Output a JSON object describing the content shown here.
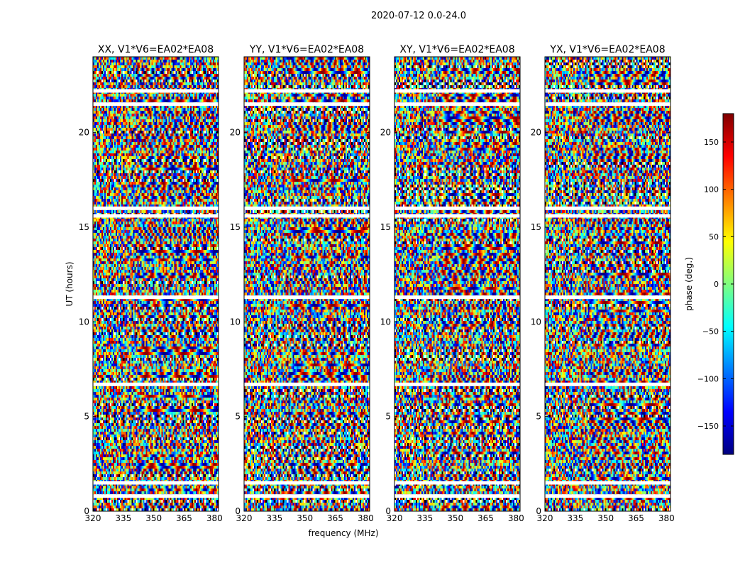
{
  "figure": {
    "suptitle": "2020-07-12 0.0-24.0"
  },
  "chart_data": {
    "type": "heatmap",
    "xlabel": "frequency (MHz)",
    "ylabel": "UT (hours)",
    "xlim": [
      320,
      382
    ],
    "ylim": [
      0,
      24
    ],
    "xticks": [
      "320",
      "335",
      "350",
      "365",
      "380"
    ],
    "yticks": [
      "0",
      "5",
      "10",
      "15",
      "20"
    ],
    "panels": [
      {
        "title": "XX, V1*V6=EA02*EA08",
        "pol": "XX"
      },
      {
        "title": "YY, V1*V6=EA02*EA08",
        "pol": "YY"
      },
      {
        "title": "XY, V1*V6=EA02*EA08",
        "pol": "XY"
      },
      {
        "title": "YX, V1*V6=EA02*EA08",
        "pol": "YX"
      }
    ],
    "flagged_gaps_ut_hours": [
      0.8,
      1.5,
      6.7,
      11.3,
      15.6,
      16.0,
      21.5,
      22.2
    ],
    "colorbar": {
      "label": "phase (deg.)",
      "range": [
        -180,
        180
      ],
      "ticks": [
        "−150",
        "−100",
        "−50",
        "0",
        "50",
        "100",
        "150"
      ],
      "colormap": [
        "#00007f",
        "#0000ff",
        "#007fff",
        "#00ffff",
        "#7fff7f",
        "#ffff00",
        "#ff7f00",
        "#ff0000",
        "#7f0000"
      ]
    }
  }
}
